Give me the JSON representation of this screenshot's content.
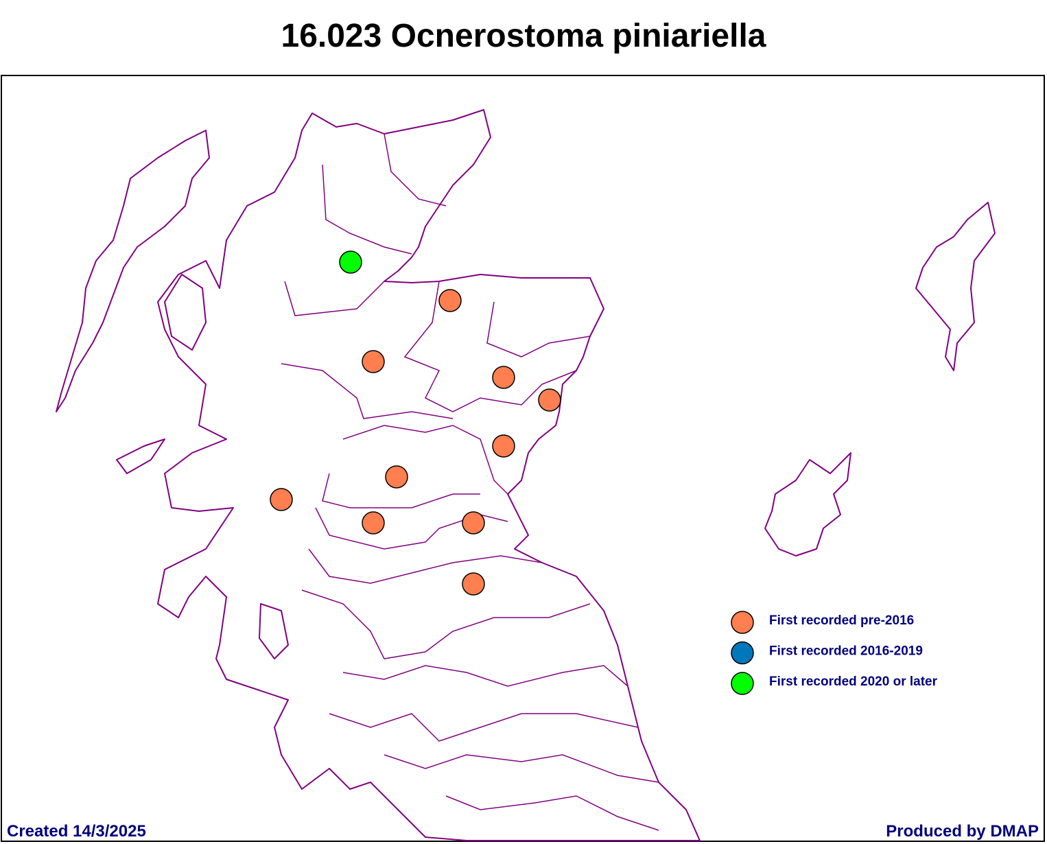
{
  "title": "16.023 Ocnerostoma piniariella",
  "legend": [
    {
      "label": "First recorded pre-2016",
      "color": "#ff7f50"
    },
    {
      "label": "First recorded 2016-2019",
      "color": "#0077bb"
    },
    {
      "label": "First recorded 2020 or later",
      "color": "#00ff00"
    }
  ],
  "footer": {
    "created": "Created 14/3/2025",
    "produced": "Produced by DMAP"
  }
}
